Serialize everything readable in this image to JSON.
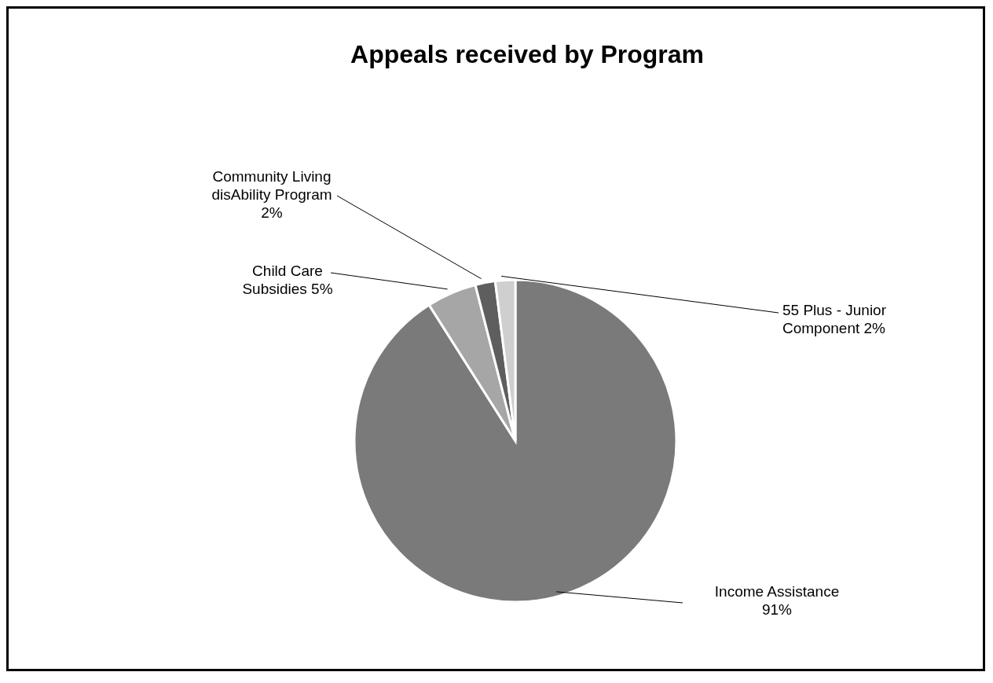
{
  "chart_data": {
    "type": "pie",
    "title": "Appeals received by Program",
    "categories": [
      "Income Assistance",
      "Child Care Subsidies",
      "Community Living disAbility Program",
      "55 Plus - Junior Component"
    ],
    "values": [
      91,
      5,
      2,
      2
    ],
    "value_labels": [
      "91%",
      "5%",
      "2%",
      "2%"
    ],
    "colors": [
      "#7a7a7a",
      "#a6a6a6",
      "#5e5e5e",
      "#cfcfcf"
    ]
  }
}
